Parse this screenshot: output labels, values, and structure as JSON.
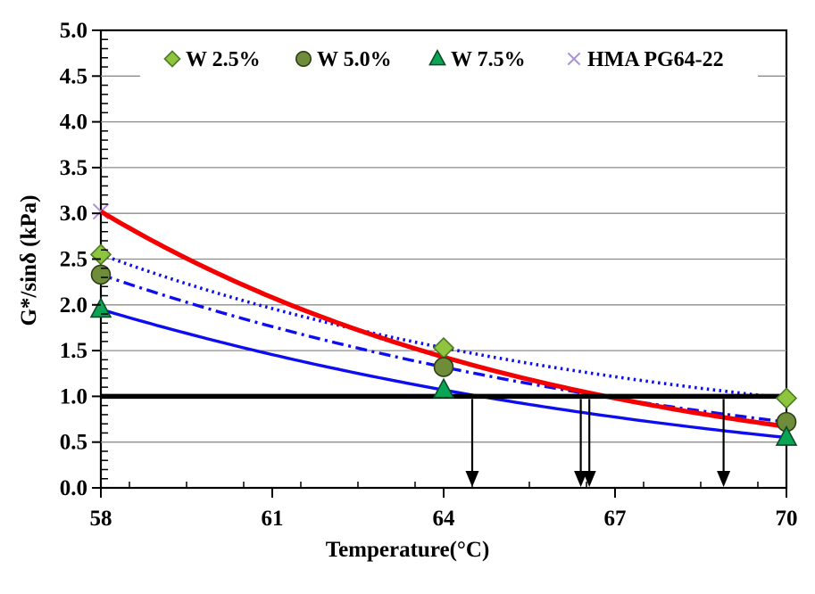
{
  "chart_data": {
    "type": "scatter",
    "title": "",
    "xlabel": "Temperature(°C)",
    "ylabel": "G*/sinδ (kPa)",
    "x": [
      58,
      64,
      70
    ],
    "xlim": [
      58,
      70
    ],
    "ylim": [
      0.0,
      5.0
    ],
    "x_major_ticks": [
      58,
      61,
      64,
      67,
      70
    ],
    "x_minor_step": 0.5,
    "y_major_ticks": [
      0.0,
      0.5,
      1.0,
      1.5,
      2.0,
      2.5,
      3.0,
      3.5,
      4.0,
      4.5,
      5.0
    ],
    "y_minor_step": 0.1,
    "grid": {
      "show": true,
      "color": "#8c8c8c",
      "interval": 0.5
    },
    "legend": {
      "position": "top-inside",
      "background": "#ffffff"
    },
    "threshold_line": {
      "value": 1.0,
      "color": "#000000"
    },
    "series": [
      {
        "name": "W 2.5%",
        "marker": "diamond",
        "marker_fill": "#8fc43f",
        "marker_stroke": "#4c7a26",
        "line_color": "#0d0def",
        "line_style": "dotted",
        "values": [
          2.55,
          1.53,
          0.98
        ],
        "marker_temps": [
          58,
          64,
          70
        ],
        "failure_temperature": 68.9
      },
      {
        "name": "W 5.0%",
        "marker": "circle",
        "marker_fill": "#6e8c3a",
        "marker_stroke": "#2f3d17",
        "line_color": "#0d0def",
        "line_style": "dashdot",
        "values": [
          2.33,
          1.32,
          0.72
        ],
        "marker_temps": [
          58,
          64,
          70
        ],
        "failure_temperature": 66.4
      },
      {
        "name": "W 7.5%",
        "marker": "triangle",
        "marker_fill": "#0aa455",
        "marker_stroke": "#0b4a28",
        "line_color": "#0d0def",
        "line_style": "solid",
        "values": [
          1.95,
          1.07,
          0.55
        ],
        "marker_temps": [
          58,
          64,
          70
        ],
        "failure_temperature": 64.5
      },
      {
        "name": "HMA PG64-22",
        "marker": "x",
        "marker_fill": "#ab93d8",
        "marker_stroke": "#ab93d8",
        "line_color": "#f40000",
        "line_style": "solid-thick",
        "values": [
          3.02,
          1.43,
          0.67
        ],
        "marker_temps": [
          58
        ],
        "failure_temperature": 66.55
      }
    ]
  }
}
